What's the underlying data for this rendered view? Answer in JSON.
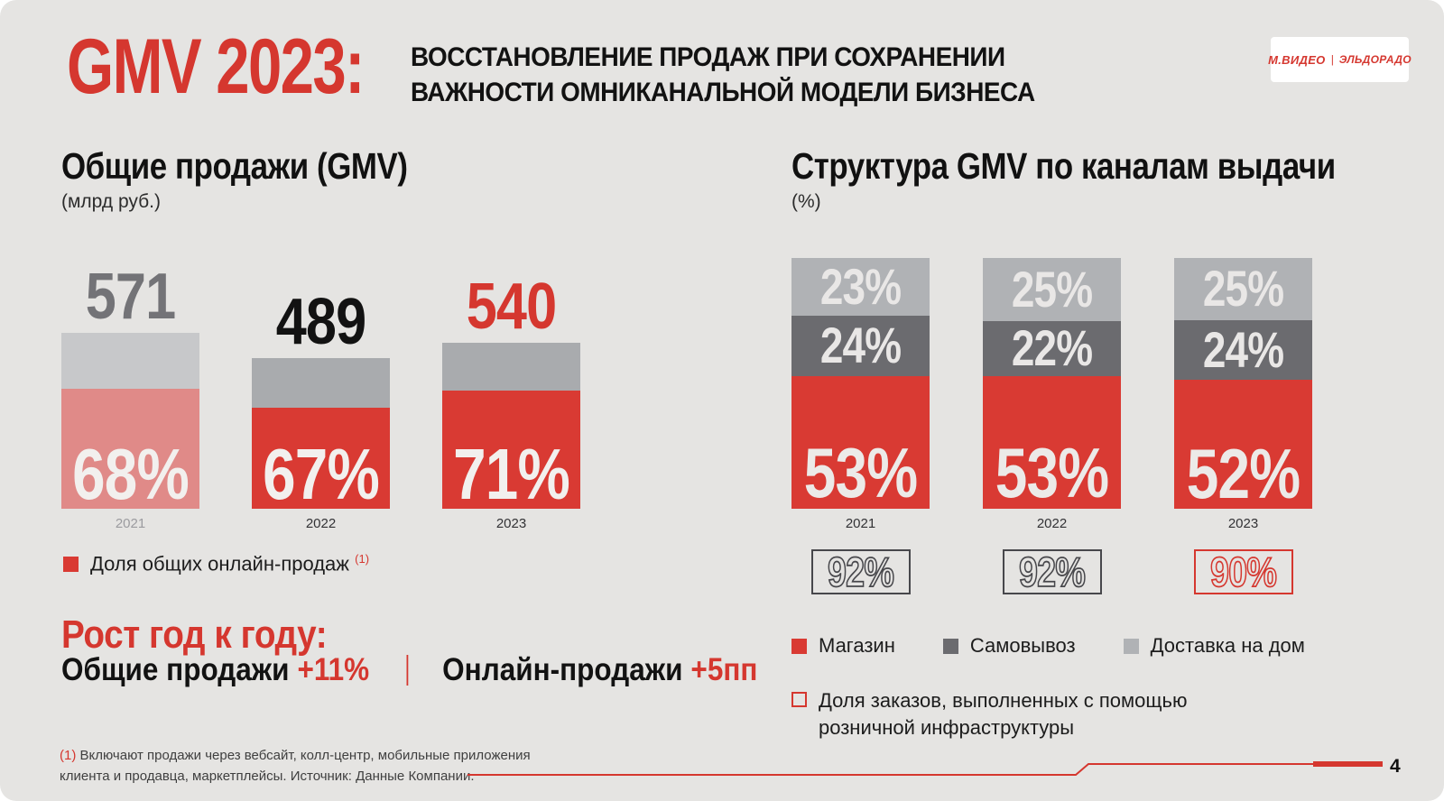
{
  "colors": {
    "background": "#e5e4e2",
    "accent_red": "#d5372f",
    "bar_red": "#d93a33",
    "bar_red_muted": "#e08a88",
    "bar_gray": "#a9abae",
    "bar_gray_muted": "#c7c8ca",
    "stack_light_gray": "#b0b2b5",
    "stack_dark_gray": "#6b6b6f",
    "box_border_gray": "#47474b"
  },
  "header": {
    "title": "GMV 2023:",
    "subtitle_line1": "ВОССТАНОВЛЕНИЕ ПРОДАЖ ПРИ СОХРАНЕНИИ",
    "subtitle_line2": "ВАЖНОСТИ ОМНИКАНАЛЬНОЙ МОДЕЛИ БИЗНЕСА",
    "logo_left": "М.ВИДЕО",
    "logo_divider": "|",
    "logo_right": "ЭЛЬДОРАДО"
  },
  "chart_data": [
    {
      "type": "bar",
      "title": "Общие продажи (GMV)",
      "unit": "(млрд руб.)",
      "categories": [
        "2021",
        "2022",
        "2023"
      ],
      "series": [
        {
          "name": "GMV, млрд руб.",
          "values": [
            571,
            489,
            540
          ]
        },
        {
          "name": "Доля общих онлайн-продаж, %",
          "values": [
            68,
            67,
            71
          ]
        }
      ],
      "value_labels": [
        "571",
        "489",
        "540"
      ],
      "share_labels": [
        "68%",
        "67%",
        "71%"
      ],
      "legend_label": "Доля общих онлайн-продаж",
      "legend_footnote_ref": "(1)"
    },
    {
      "type": "stacked-bar",
      "title": "Структура GMV по каналам выдачи",
      "unit": "(%)",
      "categories": [
        "2021",
        "2022",
        "2023"
      ],
      "series": [
        {
          "name": "Магазин",
          "values": [
            53,
            53,
            52
          ]
        },
        {
          "name": "Самовывоз",
          "values": [
            24,
            22,
            24
          ]
        },
        {
          "name": "Доставка на дом",
          "values": [
            23,
            25,
            25
          ]
        }
      ],
      "store_labels": [
        "53%",
        "53%",
        "52%"
      ],
      "pickup_labels": [
        "24%",
        "22%",
        "24%"
      ],
      "delivery_labels": [
        "23%",
        "25%",
        "25%"
      ],
      "retail_share_labels": [
        "92%",
        "92%",
        "90%"
      ],
      "legend": [
        {
          "label": "Магазин"
        },
        {
          "label": "Самовывоз"
        },
        {
          "label": "Доставка на дом"
        }
      ],
      "note_legend": "Доля заказов, выполненных с помощью розничной инфраструктуры"
    }
  ],
  "growth": {
    "title": "Рост год к году:",
    "total_label": "Общие продажи",
    "total_value": "+11%",
    "online_label": "Онлайн-продажи",
    "online_value": "+5пп"
  },
  "footnote": {
    "ref": "(1)",
    "line1": "Включают продажи через вебсайт, колл-центр, мобильные приложения",
    "line2": "клиента и продавца, маркетплейсы. Источник: Данные Компании."
  },
  "page_number": "4"
}
